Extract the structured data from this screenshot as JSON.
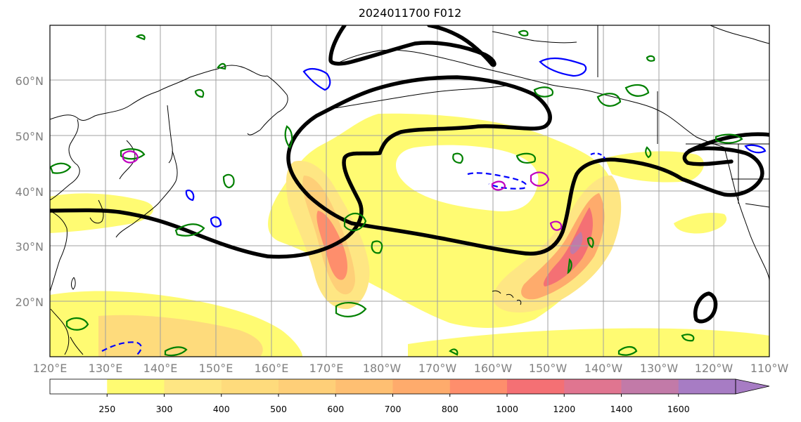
{
  "title": "2024011700 F012",
  "map": {
    "lon_range": [
      "120°E",
      "110°W"
    ],
    "lat_range": [
      "10°N",
      "70°N"
    ],
    "gridlines": true,
    "lat_labels": [
      "60°N",
      "50°N",
      "40°N",
      "30°N",
      "20°N"
    ],
    "lon_labels": [
      "120°E",
      "130°E",
      "140°E",
      "150°E",
      "160°E",
      "170°E",
      "180°W",
      "170°W",
      "160°W",
      "150°W",
      "140°W",
      "130°W",
      "120°W",
      "110°W"
    ]
  },
  "colorbar": {
    "levels": [
      "250",
      "300",
      "400",
      "500",
      "600",
      "700",
      "800",
      "1000",
      "1200",
      "1400",
      "1600"
    ],
    "colors": [
      "#ffffff",
      "#fffb72",
      "#fee683",
      "#fedb7c",
      "#fecf78",
      "#febf72",
      "#feab6c",
      "#fe8e6c",
      "#f47074",
      "#e07590",
      "#c27aa8",
      "#a77cc4"
    ],
    "extend": "max"
  },
  "contour_colors": {
    "black": "#000000",
    "green": "#008000",
    "blue": "#0000ff",
    "magenta": "#c000c0"
  }
}
